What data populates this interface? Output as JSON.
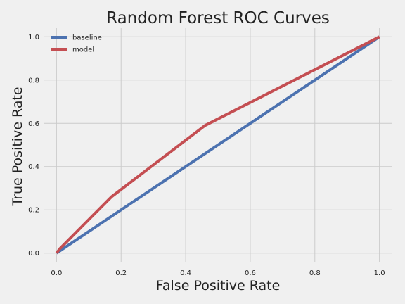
{
  "chart_data": {
    "type": "line",
    "title": "Random Forest ROC Curves",
    "xlabel": "False Positive Rate",
    "ylabel": "True Positive Rate",
    "xlim": [
      -0.04,
      1.04
    ],
    "ylim": [
      -0.04,
      1.04
    ],
    "xticks": [
      "0.0",
      "0.2",
      "0.4",
      "0.6",
      "0.8",
      "1.0"
    ],
    "yticks": [
      "0.0",
      "0.2",
      "0.4",
      "0.6",
      "0.8",
      "1.0"
    ],
    "grid": true,
    "legend_position": "top-left",
    "series": [
      {
        "name": "baseline",
        "color": "#4c72b0",
        "points": [
          [
            0.0,
            0.0
          ],
          [
            1.0,
            1.0
          ]
        ]
      },
      {
        "name": "model",
        "color": "#c44e52",
        "points": [
          [
            0.0,
            0.0
          ],
          [
            0.01,
            0.02
          ],
          [
            0.17,
            0.26
          ],
          [
            0.46,
            0.59
          ],
          [
            1.0,
            1.0
          ]
        ]
      }
    ]
  }
}
